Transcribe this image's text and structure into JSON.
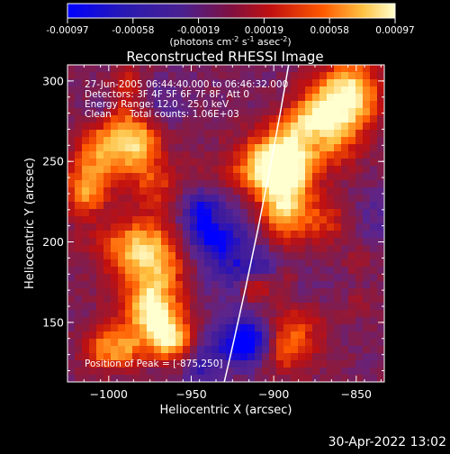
{
  "colorbar": {
    "ticks": [
      "-0.00097",
      "-0.00058",
      "-0.00019",
      "0.00019",
      "0.00058",
      "0.00097"
    ],
    "units_main": "(photons cm",
    "units_sup1": "-2",
    "units_mid1": " s",
    "units_sup2": "-1",
    "units_mid2": " asec",
    "units_sup3": "-2",
    "units_end": ")"
  },
  "footer": {
    "timestamp": "30-Apr-2022 13:02"
  },
  "chart_data": {
    "type": "heatmap",
    "title": "Reconstructed RHESSI Image",
    "xlabel": "Heliocentric X (arcsec)",
    "ylabel": "Heliocentric Y (arcsec)",
    "xlim": [
      -1025,
      -833
    ],
    "ylim": [
      113,
      310
    ],
    "x_ticks": [
      -1000,
      -950,
      -900,
      -850
    ],
    "y_ticks": [
      150,
      200,
      250,
      300
    ],
    "x_tick_labels": [
      "−1000",
      "−950",
      "−900",
      "−850"
    ],
    "y_tick_labels": [
      "150",
      "200",
      "250",
      "300"
    ],
    "colorscale": [
      "#0000ff",
      "#3a1aa0",
      "#5a2590",
      "#8a1a40",
      "#c01010",
      "#ff5a00",
      "#ffc040",
      "#ffffd0"
    ],
    "value_range": [
      -0.00097,
      0.00097
    ],
    "annotations": [
      "27-Jun-2005 06:44:40.000 to 06:46:32.000",
      "Detectors: 3F 4F 5F 6F 7F 8F, Att 0",
      "Energy Range: 12.0 - 25.0 keV",
      "Clean      Total counts: 1.06E+03"
    ],
    "peak_label": "Position of Peak = [-875,250]",
    "peak_position": [
      -875,
      250
    ],
    "limb_curve": [
      [
        -891,
        310
      ],
      [
        -930,
        113
      ]
    ]
  }
}
